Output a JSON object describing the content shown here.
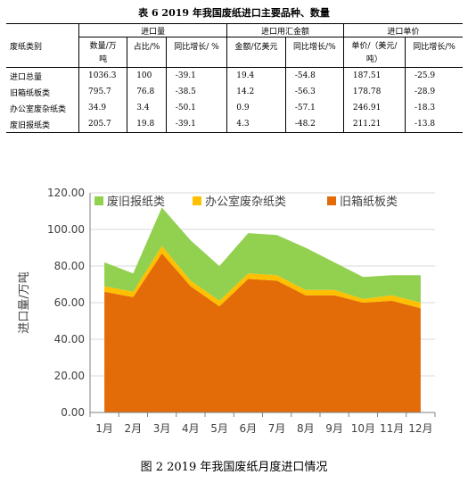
{
  "table": {
    "title": "表 6   2019 年我国废纸进口主要品种、数量",
    "col_category": "废纸类别",
    "group_volume": "进口量",
    "group_amount": "进口用汇金额",
    "group_price": "进口单价",
    "col_qty_l1": "数量/万",
    "col_qty_l2": "吨",
    "col_share": "占比/%",
    "col_yoy1": "同比增长/ %",
    "col_amount": "金额/亿美元",
    "col_yoy2": "同比增长/%",
    "col_price_l1": "单价/（美元/",
    "col_price_l2": "吨）",
    "col_yoy3": "同比增长/%",
    "rows": [
      {
        "name": "进口总量",
        "qty": "1036.3",
        "share": "100",
        "yoy1": "-39.1",
        "amount": "19.4",
        "yoy2": "-54.8",
        "price": "187.51",
        "yoy3": "-25.9"
      },
      {
        "name": "旧箱纸板类",
        "qty": "795.7",
        "share": "76.8",
        "yoy1": "-38.5",
        "amount": "14.2",
        "yoy2": "-56.3",
        "price": "178.78",
        "yoy3": "-28.9"
      },
      {
        "name": "办公室废杂纸类",
        "qty": "34.9",
        "share": "3.4",
        "yoy1": "-50.1",
        "amount": "0.9",
        "yoy2": "-57.1",
        "price": "246.91",
        "yoy3": "-18.3"
      },
      {
        "name": "废旧报纸类",
        "qty": "205.7",
        "share": "19.8",
        "yoy1": "-39.1",
        "amount": "4.3",
        "yoy2": "-48.2",
        "price": "211.21",
        "yoy3": "-13.8"
      }
    ]
  },
  "chart_data": {
    "type": "area",
    "stacked": true,
    "categories": [
      "1月",
      "2月",
      "3月",
      "4月",
      "5月",
      "6月",
      "7月",
      "8月",
      "9月",
      "10月",
      "11月",
      "12月"
    ],
    "series": [
      {
        "name": "旧箱纸板类",
        "color": "#E36C09",
        "values": [
          66,
          63,
          87,
          69,
          58,
          73,
          72,
          64,
          64,
          60,
          61,
          57
        ]
      },
      {
        "name": "办公室废杂纸类",
        "color": "#FFC000",
        "values": [
          3,
          3,
          4,
          3,
          3,
          3,
          3,
          3,
          3,
          2,
          3,
          3
        ]
      },
      {
        "name": "废旧报纸类",
        "color": "#92D050",
        "values": [
          13,
          10,
          21,
          22,
          19,
          22,
          22,
          23,
          15,
          12,
          11,
          15
        ]
      }
    ],
    "legend_order": [
      "废旧报纸类",
      "办公室废杂纸类",
      "旧箱纸板类"
    ],
    "ylabel": "进口量/万吨",
    "ylim": [
      0,
      120
    ],
    "ytick_labels": [
      "0.00",
      "20.00",
      "40.00",
      "60.00",
      "80.00",
      "100.00",
      "120.00"
    ],
    "grid": true,
    "legend_position": "top"
  },
  "caption": "图 2    2019 年我国废纸月度进口情况"
}
